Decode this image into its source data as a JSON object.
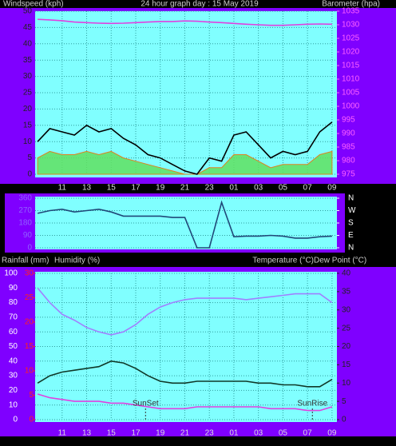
{
  "chart_data": [
    {
      "type": "line",
      "title": "24 hour graph day : 15 May 2019",
      "ylabel": "Windspeed (kph)",
      "y2label": "Barometer (hpa)",
      "x": [
        9,
        10,
        11,
        12,
        13,
        14,
        15,
        16,
        17,
        18,
        19,
        20,
        21,
        22,
        23,
        24,
        25,
        26,
        27,
        28,
        29,
        30,
        31,
        32,
        33
      ],
      "xlim": [
        8.8,
        33.4
      ],
      "xticks": [
        11,
        13,
        15,
        17,
        19,
        21,
        23,
        {
          "value": 25,
          "label": "01"
        },
        {
          "value": 27,
          "label": "03"
        },
        {
          "value": 29,
          "label": "05"
        },
        {
          "value": 31,
          "label": "07"
        },
        {
          "value": 33,
          "label": "09"
        }
      ],
      "ylim": [
        0,
        50
      ],
      "yticks": [
        0,
        5,
        10,
        15,
        20,
        25,
        30,
        35,
        40,
        45,
        50
      ],
      "y2lim": [
        975,
        1035
      ],
      "y2ticks": [
        975,
        980,
        985,
        990,
        995,
        1000,
        1005,
        1010,
        1015,
        1020,
        1025,
        1030,
        1035
      ],
      "grid": true,
      "series": [
        {
          "color": "#60e060",
          "fill": true,
          "values": [
            5,
            7,
            6,
            6,
            7,
            6,
            7,
            5,
            4,
            3,
            2,
            1,
            0,
            0,
            2,
            2,
            6,
            6,
            4,
            2,
            3,
            3,
            3,
            6,
            7
          ]
        },
        {
          "color": "#000000",
          "values": [
            10,
            14,
            13,
            12,
            15,
            13,
            14,
            11,
            9,
            6,
            5,
            3,
            1,
            0,
            5,
            4,
            12,
            13,
            9,
            5,
            7,
            6,
            7,
            13,
            16
          ]
        },
        {
          "color": "#e040e0",
          "axis": "y2",
          "values": [
            1032,
            1031.8,
            1031.5,
            1031,
            1030.8,
            1030.6,
            1030.5,
            1030.6,
            1030.8,
            1031,
            1031.2,
            1031.2,
            1031.4,
            1031.3,
            1031,
            1030.8,
            1030.5,
            1030.2,
            1030,
            1029.8,
            1029.8,
            1030,
            1030.2,
            1030.3,
            1030.2
          ]
        }
      ]
    },
    {
      "type": "line",
      "x": [
        9,
        10,
        11,
        12,
        13,
        14,
        15,
        16,
        17,
        18,
        19,
        20,
        21,
        22,
        23,
        24,
        25,
        26,
        27,
        28,
        29,
        30,
        31,
        32,
        33
      ],
      "xlim": [
        8.8,
        33.4
      ],
      "ylim": [
        0,
        360
      ],
      "yticks": [
        0,
        90,
        180,
        270,
        360
      ],
      "y2lim": [
        0,
        360
      ],
      "y2ticks": [
        {
          "value": 360,
          "label": "N"
        },
        {
          "value": 270,
          "label": "W"
        },
        {
          "value": 180,
          "label": "S"
        },
        {
          "value": 90,
          "label": "E"
        },
        {
          "value": 0,
          "label": "N"
        }
      ],
      "grid": true,
      "series": [
        {
          "color": "#204878",
          "values": [
            250,
            270,
            280,
            260,
            270,
            280,
            260,
            230,
            230,
            230,
            230,
            220,
            220,
            0,
            0,
            330,
            80,
            85,
            85,
            90,
            85,
            70,
            70,
            80,
            85
          ]
        }
      ]
    },
    {
      "type": "line",
      "y3label": "Rainfall (mm)",
      "x": [
        9,
        10,
        11,
        12,
        13,
        14,
        15,
        16,
        17,
        18,
        19,
        20,
        21,
        22,
        23,
        24,
        25,
        26,
        27,
        28,
        29,
        30,
        31,
        32,
        33
      ],
      "xlim": [
        8.8,
        33.4
      ],
      "xticks": [
        11,
        13,
        15,
        17,
        19,
        21,
        23,
        {
          "value": 25,
          "label": "01"
        },
        {
          "value": 27,
          "label": "03"
        },
        {
          "value": 29,
          "label": "05"
        },
        {
          "value": 31,
          "label": "07"
        },
        {
          "value": 33,
          "label": "09"
        }
      ],
      "ylim": [
        0,
        100
      ],
      "yticks": [
        0,
        10,
        20,
        30,
        40,
        50,
        60,
        70,
        80,
        90,
        100
      ],
      "y2lim": [
        0,
        40
      ],
      "y2ticks": [
        0,
        5,
        10,
        15,
        20,
        25,
        30,
        35,
        40
      ],
      "y3lim": [
        0,
        30
      ],
      "y3ticks": [
        0,
        5,
        10,
        15,
        20,
        25,
        30
      ],
      "grid": true,
      "series": [
        {
          "name": "Humidity (%)",
          "color": "#a080ff",
          "values": [
            90,
            80,
            72,
            68,
            63,
            60,
            58,
            60,
            65,
            72,
            77,
            80,
            82,
            83,
            83,
            83,
            83,
            82,
            83,
            84,
            85,
            86,
            86,
            86,
            80
          ]
        },
        {
          "name": "Temperature (°C)",
          "color": "#103828",
          "axis": "y2",
          "values": [
            10,
            12,
            13,
            13.5,
            14,
            14.5,
            16,
            15.5,
            14,
            12,
            10.5,
            10,
            10,
            10.5,
            10.5,
            10.5,
            10.5,
            10.5,
            10,
            10,
            9.5,
            9.5,
            9,
            9,
            11
          ]
        },
        {
          "name": "Dew Point (°C)",
          "color": "#e040e0",
          "axis": "y2",
          "values": [
            7,
            6,
            5.5,
            5,
            5,
            5,
            4.5,
            4.5,
            4,
            3.5,
            3,
            3,
            3,
            3.5,
            3.5,
            3.5,
            3.5,
            3.5,
            3.5,
            3,
            3,
            3,
            2.5,
            2.5,
            3.5
          ]
        }
      ],
      "annotations": [
        {
          "text": "SunSet",
          "x": 17.8
        },
        {
          "text": "SunRise",
          "x": 31.4
        }
      ]
    }
  ]
}
